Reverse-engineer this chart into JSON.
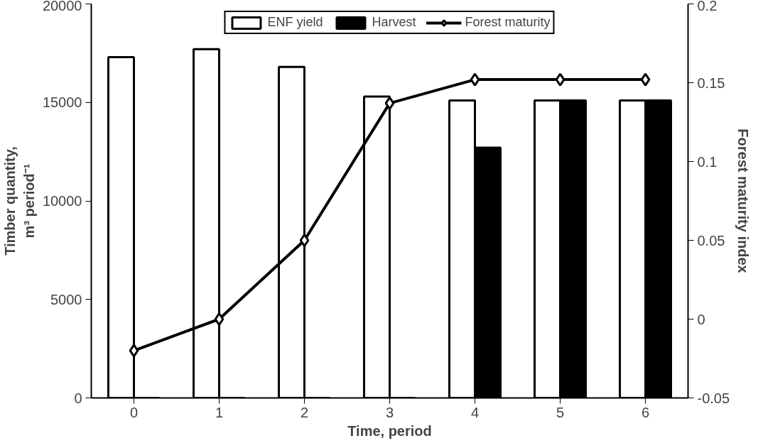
{
  "chart_data": {
    "type": "bar",
    "xlabel": "Time, period",
    "ylabel": "Timber quantity,\nm³ period⁻¹",
    "y2label": "Forest maturity index",
    "categories": [
      "0",
      "1",
      "2",
      "3",
      "4",
      "5",
      "6"
    ],
    "series": [
      {
        "name": "ENF yield",
        "color": "#ffffff",
        "values": [
          17300,
          17700,
          16800,
          15300,
          15100,
          15100,
          15100
        ]
      },
      {
        "name": "Harvest",
        "color": "#000000",
        "values": [
          0,
          0,
          0,
          0,
          12700,
          15100,
          15100
        ]
      },
      {
        "name": "Forest maturity",
        "type": "line",
        "axis": "y2",
        "color": "#000000",
        "marker": "diamond",
        "values": [
          -0.02,
          0.0,
          0.05,
          0.137,
          0.152,
          0.152,
          0.152
        ]
      }
    ],
    "ylim": [
      0,
      20000
    ],
    "yticks": [
      0,
      5000,
      10000,
      15000,
      20000
    ],
    "y2lim": [
      -0.05,
      0.2
    ],
    "y2ticks": [
      -0.05,
      0,
      0.05,
      0.1,
      0.15,
      0.2
    ],
    "grid": false,
    "legend": "top"
  }
}
